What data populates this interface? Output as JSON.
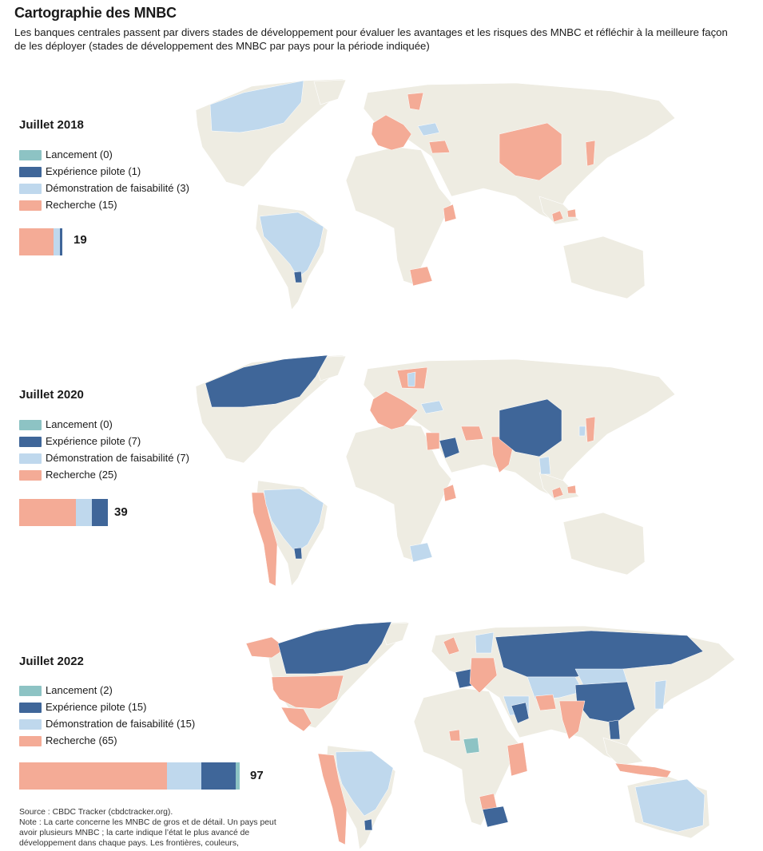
{
  "title": "Cartographie des MNBC",
  "subtitle": "Les banques centrales passent par divers stades de développement pour évaluer les avantages et les risques des MNBC et réfléchir à la meilleure façon de les déployer (stades de développement des MNBC par pays pour la période indiquée)",
  "colors": {
    "launch": "#8dc3c4",
    "pilot": "#3f6699",
    "proof": "#bfd8ed",
    "research": "#f4ab96",
    "land": "#eeece2"
  },
  "panels": [
    {
      "period": "Juillet 2018",
      "legend": [
        {
          "key": "launch",
          "label": "Lancement (0)",
          "count": 0
        },
        {
          "key": "pilot",
          "label": "Expérience pilote (1)",
          "count": 1
        },
        {
          "key": "proof",
          "label": "Démonstration de faisabilité (3)",
          "count": 3
        },
        {
          "key": "research",
          "label": "Recherche (15)",
          "count": 15
        }
      ],
      "total": "19"
    },
    {
      "period": "Juillet 2020",
      "legend": [
        {
          "key": "launch",
          "label": "Lancement (0)",
          "count": 0
        },
        {
          "key": "pilot",
          "label": "Expérience pilote (7)",
          "count": 7
        },
        {
          "key": "proof",
          "label": "Démonstration de faisabilité (7)",
          "count": 7
        },
        {
          "key": "research",
          "label": "Recherche (25)",
          "count": 25
        }
      ],
      "total": "39"
    },
    {
      "period": "Juillet 2022",
      "legend": [
        {
          "key": "launch",
          "label": "Lancement (2)",
          "count": 2
        },
        {
          "key": "pilot",
          "label": "Expérience pilote (15)",
          "count": 15
        },
        {
          "key": "proof",
          "label": "Démonstration de faisabilité (15)",
          "count": 15
        },
        {
          "key": "research",
          "label": "Recherche (65)",
          "count": 65
        }
      ],
      "total": "97"
    }
  ],
  "source": "Source : CBDC Tracker (cbdctracker.org).",
  "note": "Note : La carte concerne les MNBC de gros et de détail. Un pays peut avoir plusieurs MNBC ; la carte indique l’état le plus avancé de développement dans chaque pays. Les frontières, couleurs,"
}
